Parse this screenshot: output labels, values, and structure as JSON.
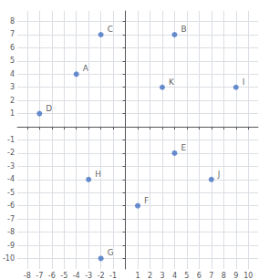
{
  "chart_data": {
    "type": "scatter",
    "x": [
      -4,
      4,
      -2,
      -7,
      4,
      1,
      -2,
      -3,
      9,
      7,
      3
    ],
    "values": [
      4,
      7,
      7,
      1,
      -2,
      -6,
      -10,
      -4,
      3,
      -4,
      3
    ],
    "labels": [
      "A",
      "B",
      "C",
      "D",
      "E",
      "F",
      "G",
      "H",
      "I",
      "J",
      "K"
    ],
    "color": "#4472C4",
    "xlim": [
      -8.8,
      10.8
    ],
    "ylim": [
      -10.8,
      8.8
    ],
    "xticks": [
      -8,
      -7,
      -6,
      -5,
      -4,
      -3,
      -2,
      -1,
      1,
      2,
      3,
      4,
      5,
      6,
      7,
      8,
      9,
      10
    ],
    "yticks": [
      -10,
      -9,
      -8,
      -7,
      -6,
      -5,
      -4,
      -3,
      -2,
      -1,
      1,
      2,
      3,
      4,
      5,
      6,
      7,
      8
    ],
    "grid": true
  }
}
